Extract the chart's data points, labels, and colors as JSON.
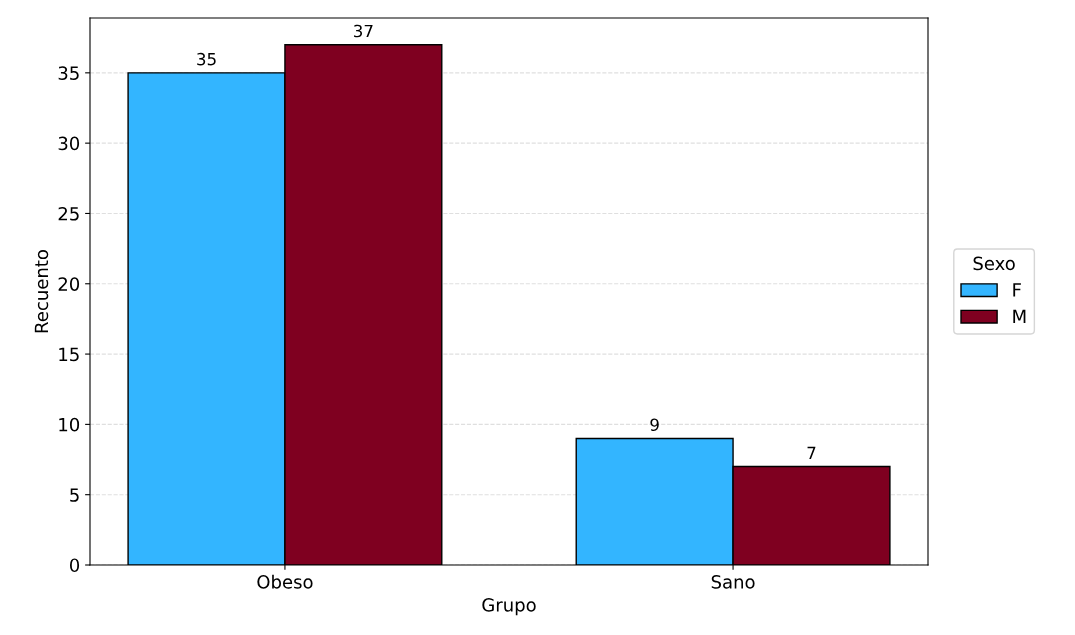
{
  "chart_data": {
    "type": "bar",
    "xlabel": "Grupo",
    "ylabel": "Recuento",
    "legend_title": "Sexo",
    "categories": [
      "Obeso",
      "Sano"
    ],
    "series": [
      {
        "name": "F",
        "color": "#33b5ff",
        "values": [
          35,
          9
        ]
      },
      {
        "name": "M",
        "color": "#7f0020",
        "values": [
          37,
          7
        ]
      }
    ],
    "ylim": [
      0,
      38.9
    ],
    "yticks": [
      0,
      5,
      10,
      15,
      20,
      25,
      30,
      35
    ],
    "grid": "y",
    "legend": "right",
    "data_labels": true
  }
}
